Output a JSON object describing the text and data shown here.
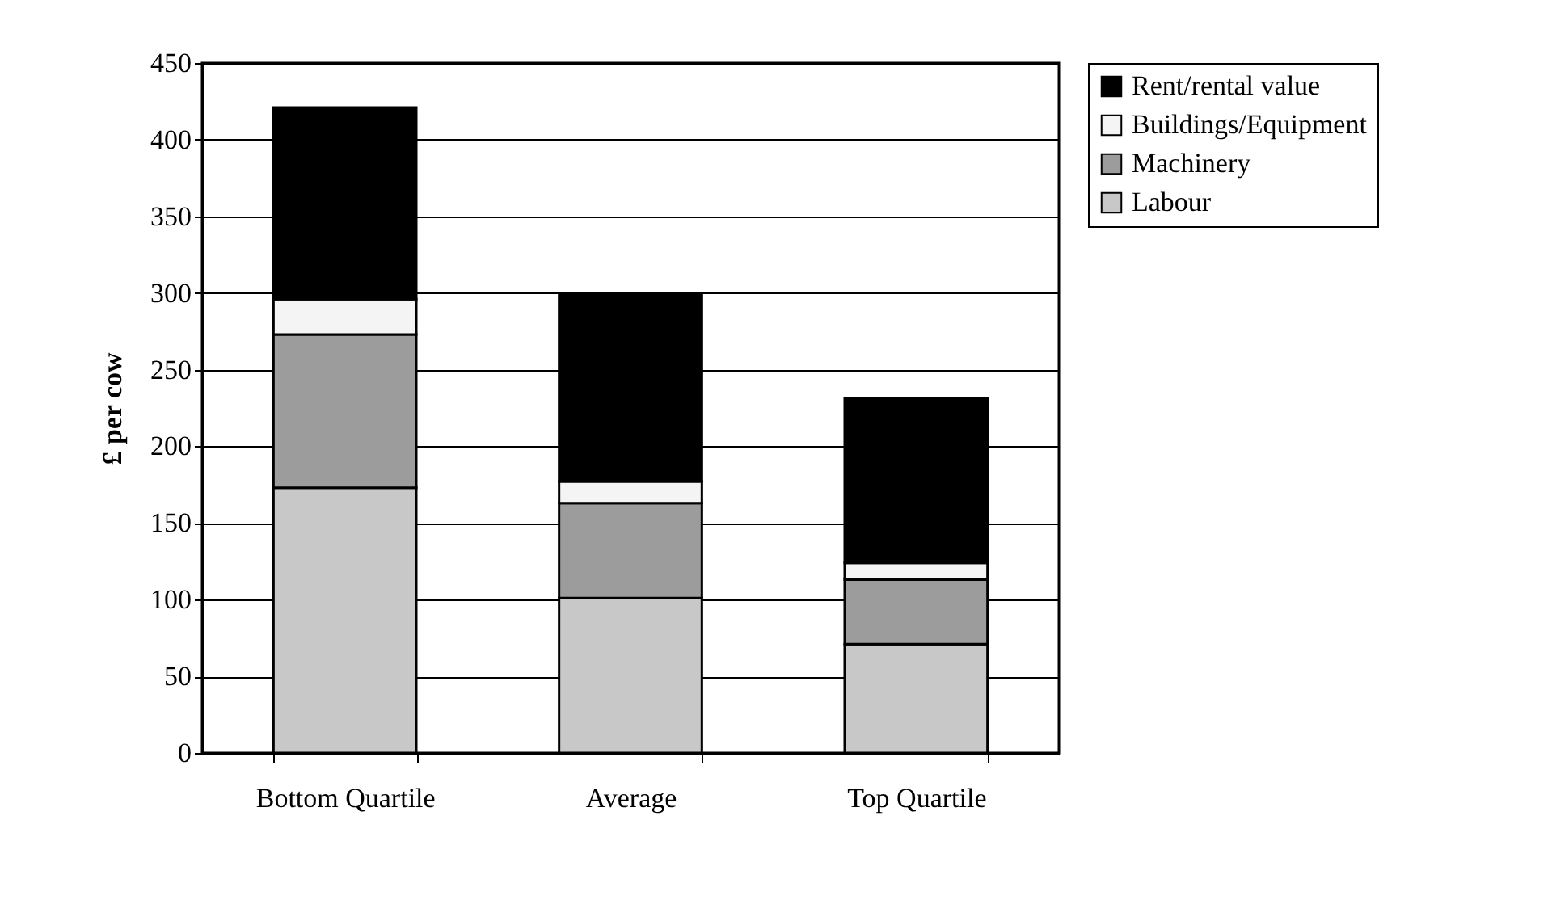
{
  "chart_data": {
    "type": "bar",
    "stacked": true,
    "ylabel": "£ per cow",
    "categories": [
      "Bottom Quartile",
      "Average",
      "Top Quartile"
    ],
    "series": [
      {
        "name": "Labour",
        "color": "#c8c8c8",
        "values": [
          173,
          101,
          71
        ]
      },
      {
        "name": "Machinery",
        "color": "#9c9c9c",
        "values": [
          100,
          62,
          42
        ]
      },
      {
        "name": "Buildings/Equipment",
        "color": "#f4f4f4",
        "values": [
          23,
          14,
          11
        ]
      },
      {
        "name": "Rent/rental value",
        "color": "#000000",
        "values": [
          125,
          123,
          107
        ]
      }
    ],
    "ylim": [
      0,
      450
    ],
    "yticks": [
      0,
      50,
      100,
      150,
      200,
      250,
      300,
      350,
      400,
      450
    ],
    "grid": "y",
    "legend": "right"
  }
}
